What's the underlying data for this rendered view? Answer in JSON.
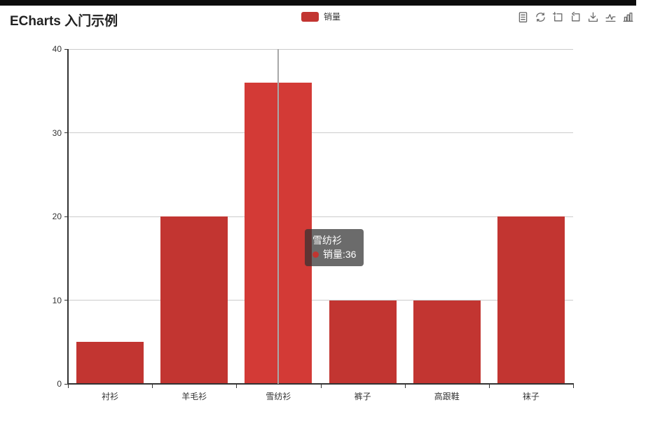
{
  "page": {
    "title": "ECharts 入门示例"
  },
  "legend": {
    "label": "销量",
    "color": "#c23531"
  },
  "toolbox": {
    "icons": [
      {
        "name": "data-view"
      },
      {
        "name": "restore"
      },
      {
        "name": "data-zoom"
      },
      {
        "name": "data-zoom-reset"
      },
      {
        "name": "save-as-image"
      },
      {
        "name": "switch-to-line"
      },
      {
        "name": "switch-to-bar"
      }
    ]
  },
  "tooltip": {
    "category": "雪纺衫",
    "series": "销量",
    "separator": " : ",
    "value": 36
  },
  "chart_data": {
    "type": "bar",
    "categories": [
      "衬衫",
      "羊毛衫",
      "雪纺衫",
      "裤子",
      "高跟鞋",
      "袜子"
    ],
    "series": [
      {
        "name": "销量",
        "values": [
          5,
          20,
          36,
          10,
          10,
          20
        ]
      }
    ],
    "title": "",
    "xlabel": "",
    "ylabel": "",
    "ylim": [
      0,
      40
    ],
    "yticks": [
      0,
      10,
      20,
      30,
      40
    ],
    "grid": true,
    "legend_position": "top-center",
    "bar_color": "#c23531",
    "highlight_color": "#d33a36",
    "highlighted_index": 2,
    "axis_pointer": "line",
    "axis_pointer_color": "#a8a8a8"
  }
}
